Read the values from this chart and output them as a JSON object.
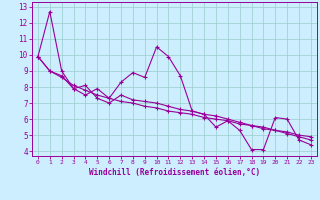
{
  "xlabel": "Windchill (Refroidissement éolien,°C)",
  "x_values": [
    0,
    1,
    2,
    3,
    4,
    5,
    6,
    7,
    8,
    9,
    10,
    11,
    12,
    13,
    14,
    15,
    16,
    17,
    18,
    19,
    20,
    21,
    22,
    23
  ],
  "lines": [
    [
      9.9,
      12.7,
      9.0,
      7.9,
      7.5,
      7.9,
      7.3,
      8.3,
      8.9,
      8.6,
      10.5,
      9.9,
      8.7,
      6.5,
      6.3,
      5.5,
      5.9,
      5.3,
      4.1,
      4.1,
      6.1,
      6.0,
      4.7,
      4.4
    ],
    [
      9.9,
      9.0,
      8.7,
      7.9,
      8.1,
      7.3,
      7.0,
      7.5,
      7.2,
      7.1,
      7.0,
      6.8,
      6.6,
      6.5,
      6.3,
      6.2,
      6.0,
      5.8,
      5.6,
      5.4,
      5.3,
      5.1,
      4.9,
      4.7
    ],
    [
      9.9,
      9.0,
      8.6,
      8.1,
      7.8,
      7.5,
      7.3,
      7.1,
      7.0,
      6.8,
      6.7,
      6.5,
      6.4,
      6.3,
      6.1,
      6.0,
      5.9,
      5.7,
      5.6,
      5.5,
      5.3,
      5.2,
      5.0,
      4.9
    ]
  ],
  "line_color": "#990099",
  "background_color": "#cceeff",
  "grid_color": "#99cccc",
  "ylim": [
    3.7,
    13.3
  ],
  "xlim": [
    -0.5,
    23.5
  ],
  "yticks": [
    4,
    5,
    6,
    7,
    8,
    9,
    10,
    11,
    12,
    13
  ],
  "xticks": [
    0,
    1,
    2,
    3,
    4,
    5,
    6,
    7,
    8,
    9,
    10,
    11,
    12,
    13,
    14,
    15,
    16,
    17,
    18,
    19,
    20,
    21,
    22,
    23
  ]
}
